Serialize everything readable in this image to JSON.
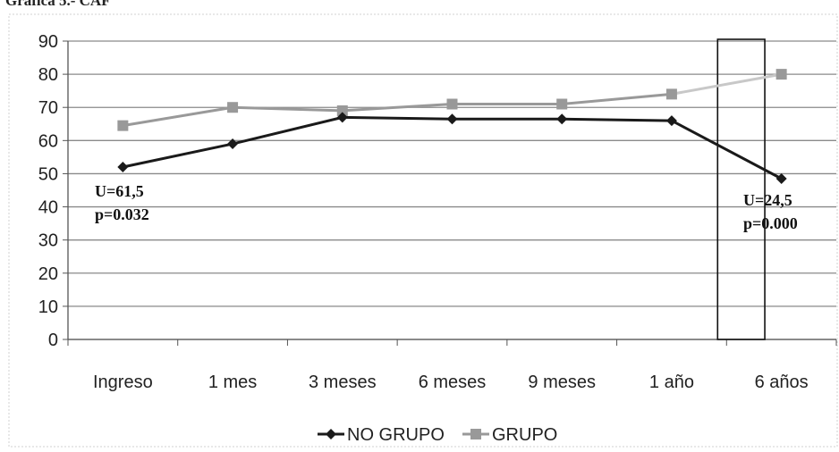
{
  "figure_title": "Gráfica 5.- CAF",
  "chart_data": {
    "type": "line",
    "categories": [
      "Ingreso",
      "1 mes",
      "3 meses",
      "6 meses",
      "9 meses",
      "1 año",
      "6 años"
    ],
    "ylim": [
      0,
      90
    ],
    "yticks": [
      0,
      10,
      20,
      30,
      40,
      50,
      60,
      70,
      80,
      90
    ],
    "grid": true,
    "legend_position": "bottom",
    "series": [
      {
        "name": "NO GRUPO",
        "values": [
          52,
          59,
          67,
          66.5,
          66.5,
          66,
          48.5
        ],
        "color": "#1a1a1a",
        "marker": "diamond"
      },
      {
        "name": "GRUPO",
        "values": [
          64.5,
          70,
          69,
          71,
          71,
          74,
          80
        ],
        "color": "#999999",
        "marker": "square"
      }
    ],
    "annotations": [
      {
        "line1": "U=61,5",
        "line2": "p=0.032",
        "category": "Ingreso"
      },
      {
        "line1": "U=24,5",
        "line2": "p=0.000",
        "category": "6 años"
      }
    ],
    "highlight_box": {
      "category_from": "1 año",
      "category_to": "6 años",
      "y_from": 0,
      "y_to": 90
    }
  }
}
